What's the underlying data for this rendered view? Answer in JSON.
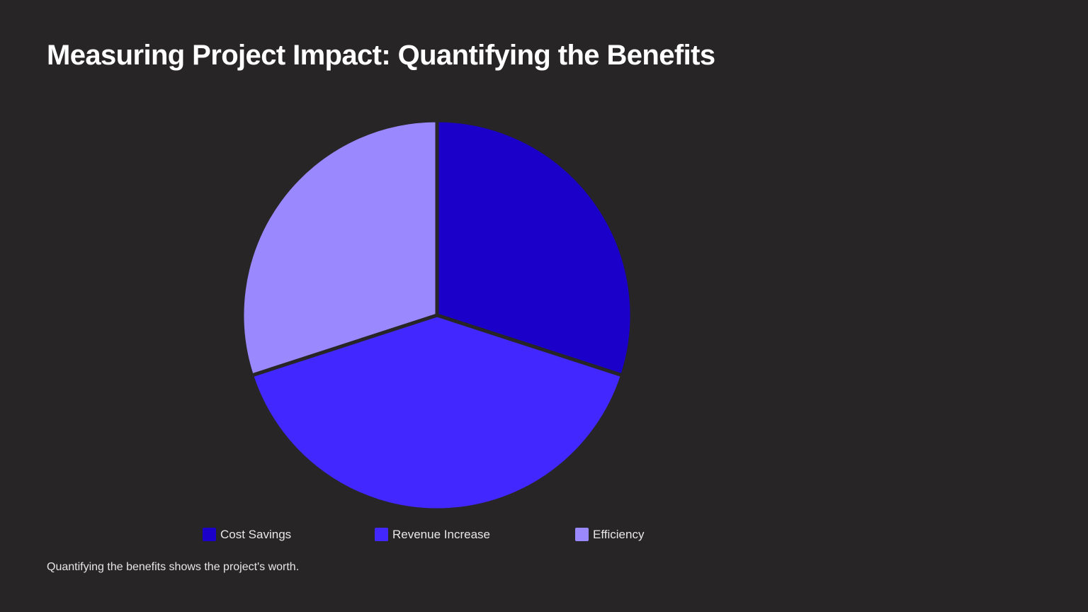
{
  "slide": {
    "title": "Measuring Project Impact: Quantifying the Benefits",
    "caption": "Quantifying the benefits shows the project's worth."
  },
  "chart_data": {
    "type": "pie",
    "title": "",
    "categories": [
      "Cost Savings",
      "Revenue Increase",
      "Efficiency"
    ],
    "values": [
      30,
      40,
      30
    ],
    "unit": "%",
    "colors": [
      "#1a00c8",
      "#4228ff",
      "#9a88ff"
    ],
    "legend_position": "bottom",
    "start_angle_deg": 0,
    "direction": "clockwise",
    "data_labels": false
  }
}
